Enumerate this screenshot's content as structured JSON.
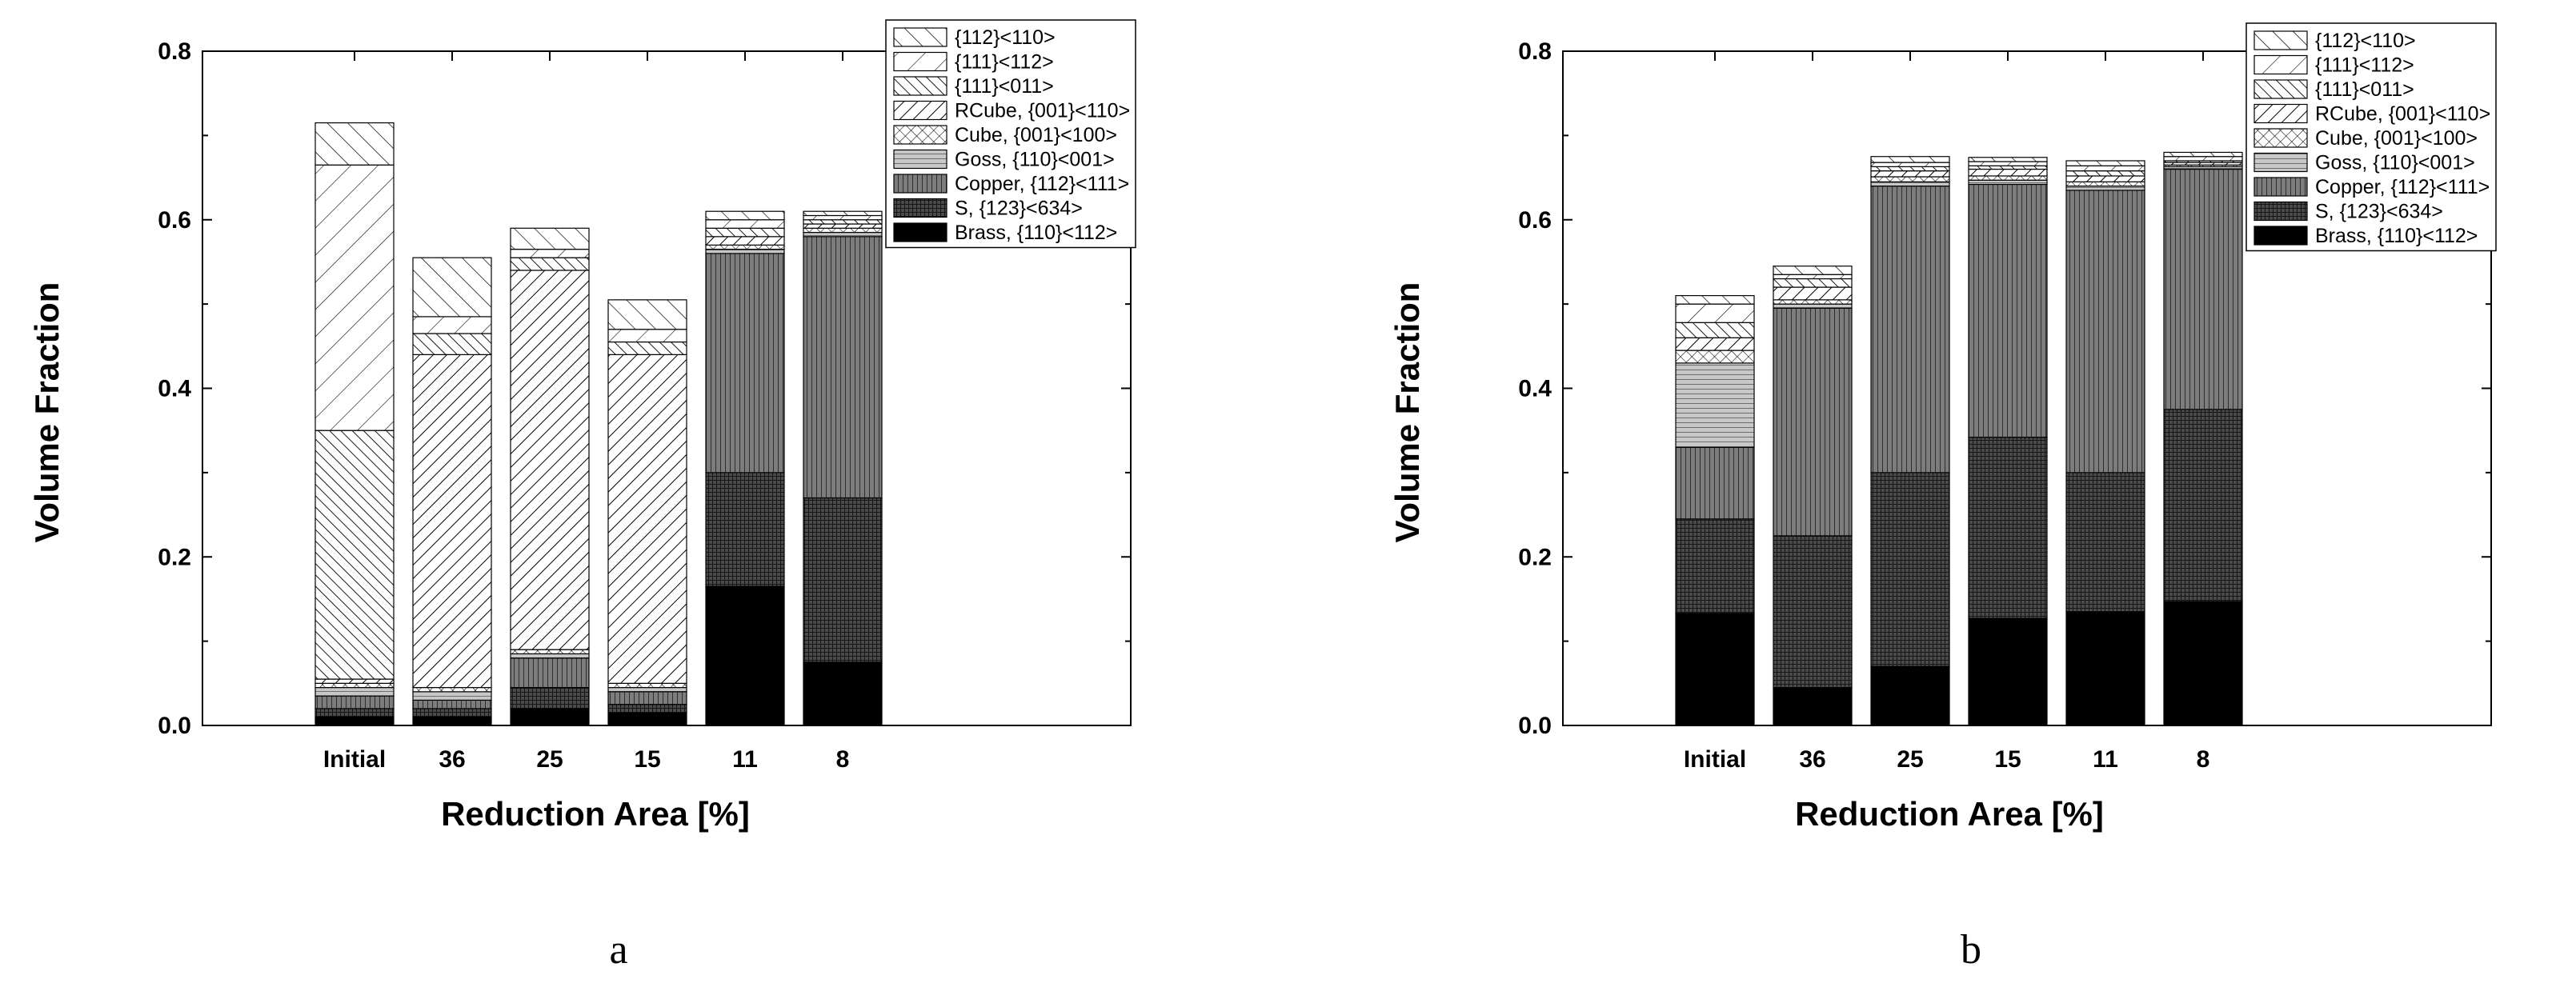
{
  "chart_data": [
    {
      "type": "bar",
      "stacked": true,
      "panel_label": "a",
      "categories": [
        "Initial",
        "36",
        "25",
        "15",
        "11",
        "8"
      ],
      "xlabel": "Reduction Area [%]",
      "ylabel": "Volume Fraction",
      "ylim": [
        0,
        0.8
      ],
      "yticks": [
        "0.0",
        "0.2",
        "0.4",
        "0.6",
        "0.8"
      ],
      "grid": false,
      "legend_position": "top-right",
      "series": [
        {
          "name": "Brass, {110}<112>",
          "pattern": "solid",
          "values": [
            0.01,
            0.01,
            0.02,
            0.015,
            0.165,
            0.075
          ]
        },
        {
          "name": "S, {123}<634>",
          "pattern": "dense-grid",
          "values": [
            0.01,
            0.01,
            0.025,
            0.01,
            0.135,
            0.195
          ]
        },
        {
          "name": "Copper, {112}<111>",
          "pattern": "vertical-lines",
          "values": [
            0.015,
            0.01,
            0.035,
            0.015,
            0.26,
            0.31
          ]
        },
        {
          "name": "Goss, {110}<001>",
          "pattern": "horizontal-lines",
          "values": [
            0.01,
            0.01,
            0.005,
            0.005,
            0.005,
            0.005
          ]
        },
        {
          "name": "Cube, {001}<100>",
          "pattern": "crosshatch",
          "values": [
            0.005,
            0.005,
            0.005,
            0.005,
            0.005,
            0.005
          ]
        },
        {
          "name": "RCube, {001}<110>",
          "pattern": "backslash",
          "values": [
            0.005,
            0.395,
            0.45,
            0.39,
            0.01,
            0.005
          ]
        },
        {
          "name": "{111}<011>",
          "pattern": "dense-slash",
          "values": [
            0.295,
            0.025,
            0.015,
            0.015,
            0.01,
            0.005
          ]
        },
        {
          "name": "{111}<112>",
          "pattern": "sparse-backslash",
          "values": [
            0.315,
            0.02,
            0.01,
            0.015,
            0.01,
            0.005
          ]
        },
        {
          "name": "{112}<110>",
          "pattern": "slash",
          "values": [
            0.05,
            0.07,
            0.025,
            0.035,
            0.01,
            0.005
          ]
        }
      ]
    },
    {
      "type": "bar",
      "stacked": true,
      "panel_label": "b",
      "categories": [
        "Initial",
        "36",
        "25",
        "15",
        "11",
        "8"
      ],
      "xlabel": "Reduction Area [%]",
      "ylabel": "Volume Fraction",
      "ylim": [
        0,
        0.8
      ],
      "yticks": [
        "0.0",
        "0.2",
        "0.4",
        "0.6",
        "0.8"
      ],
      "grid": false,
      "legend_position": "top-right",
      "series": [
        {
          "name": "Brass, {110}<112>",
          "pattern": "solid",
          "values": [
            0.133,
            0.045,
            0.07,
            0.127,
            0.135,
            0.147
          ]
        },
        {
          "name": "S, {123}<634>",
          "pattern": "dense-grid",
          "values": [
            0.112,
            0.18,
            0.23,
            0.215,
            0.165,
            0.228
          ]
        },
        {
          "name": "Copper, {112}<111>",
          "pattern": "vertical-lines",
          "values": [
            0.085,
            0.27,
            0.34,
            0.3,
            0.335,
            0.285
          ]
        },
        {
          "name": "Goss, {110}<001>",
          "pattern": "horizontal-lines",
          "values": [
            0.1,
            0.005,
            0.005,
            0.005,
            0.005,
            0.003
          ]
        },
        {
          "name": "Cube, {001}<100>",
          "pattern": "crosshatch",
          "values": [
            0.015,
            0.005,
            0.006,
            0.005,
            0.005,
            0.002
          ]
        },
        {
          "name": "RCube, {001}<110>",
          "pattern": "backslash",
          "values": [
            0.015,
            0.015,
            0.007,
            0.008,
            0.007,
            0.003
          ]
        },
        {
          "name": "{111}<011>",
          "pattern": "dense-slash",
          "values": [
            0.018,
            0.01,
            0.005,
            0.004,
            0.006,
            0.002
          ]
        },
        {
          "name": "{111}<112>",
          "pattern": "sparse-backslash",
          "values": [
            0.022,
            0.005,
            0.005,
            0.005,
            0.006,
            0.005
          ]
        },
        {
          "name": "{112}<110>",
          "pattern": "slash",
          "values": [
            0.01,
            0.01,
            0.007,
            0.005,
            0.006,
            0.005
          ]
        }
      ]
    }
  ]
}
